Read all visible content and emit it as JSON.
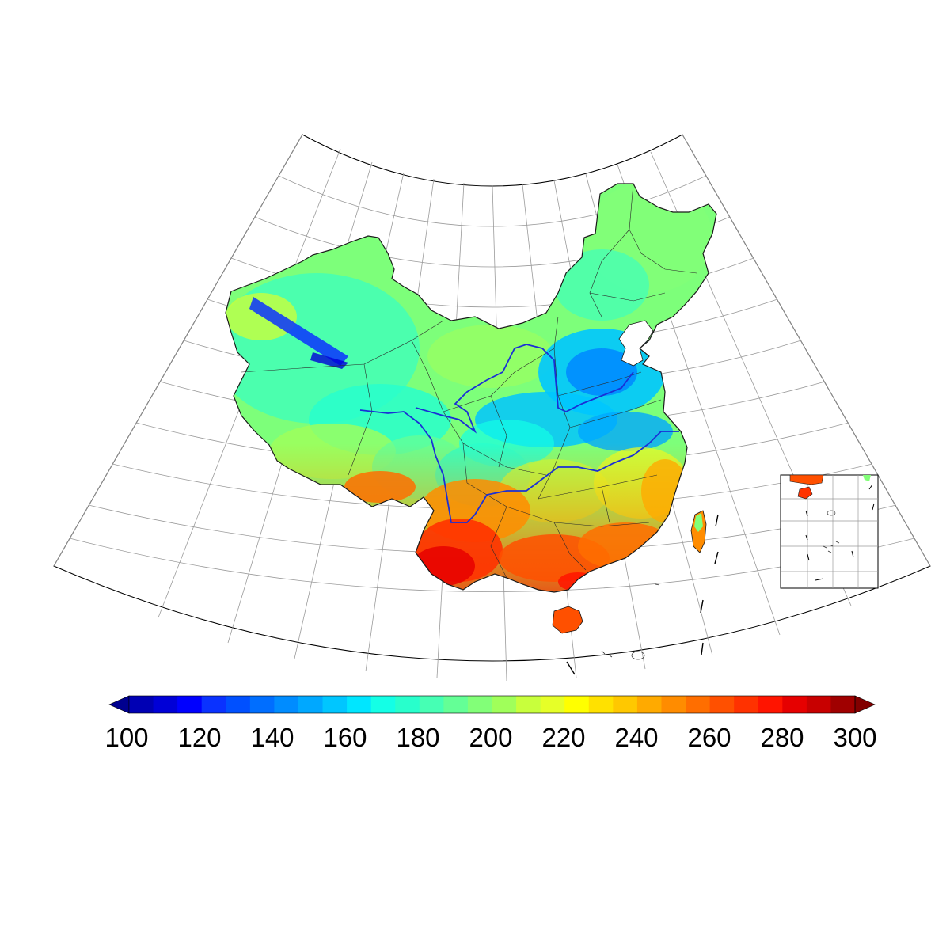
{
  "map": {
    "projection": "lambert-conformal-conic",
    "region": "China",
    "rivers": [
      "Yellow River",
      "Yangtze River"
    ],
    "inset": "South China Sea islands",
    "colors": {
      "river": "#1a2fd6",
      "boundary": "#222222",
      "graticule": "#9a9a9a"
    }
  },
  "colorbar": {
    "min": 100,
    "max": 300,
    "step": 10,
    "ticks": [
      "100",
      "120",
      "140",
      "160",
      "180",
      "200",
      "220",
      "240",
      "260",
      "280",
      "300"
    ],
    "extend": "both",
    "colors": [
      "#00008f",
      "#0000b4",
      "#0000d7",
      "#0000ff",
      "#0a32ff",
      "#0050ff",
      "#006eff",
      "#008cff",
      "#00a8ff",
      "#00c6ff",
      "#00e6ff",
      "#14ffe6",
      "#28ffcc",
      "#46ffb4",
      "#64ff96",
      "#82ff78",
      "#a0ff5a",
      "#c8ff3c",
      "#e6ff28",
      "#ffff00",
      "#ffe100",
      "#ffc800",
      "#ffaa00",
      "#ff8c00",
      "#ff6e00",
      "#ff5000",
      "#ff3200",
      "#ff1400",
      "#e60000",
      "#c80000",
      "#a00000",
      "#820000"
    ]
  }
}
